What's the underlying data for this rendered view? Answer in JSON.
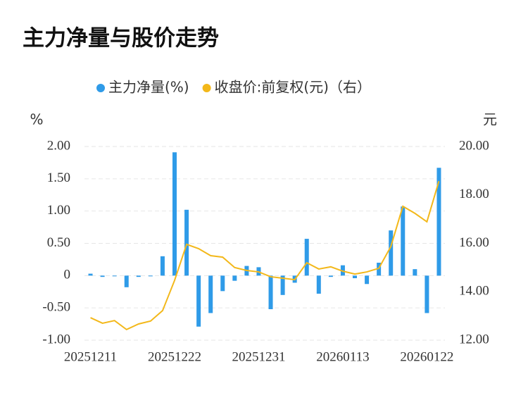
{
  "chart_data": {
    "type": "bar-line",
    "title": "主力净量与股价走势",
    "y_label": "%",
    "y2_label": "元",
    "categories": [
      "20251211",
      null,
      null,
      null,
      null,
      null,
      null,
      "20251222",
      null,
      null,
      null,
      null,
      null,
      null,
      "20251231",
      null,
      null,
      null,
      null,
      null,
      null,
      "20260113",
      null,
      null,
      null,
      null,
      null,
      null,
      "20260122",
      null
    ],
    "series": [
      {
        "name": "主力净量(%)",
        "type": "bar",
        "color": "#2f9be8",
        "values": [
          0.03,
          -0.02,
          -0.01,
          -0.18,
          -0.02,
          -0.01,
          0.3,
          1.91,
          1.02,
          -0.79,
          -0.58,
          -0.24,
          -0.08,
          0.15,
          0.13,
          -0.52,
          -0.3,
          -0.11,
          0.57,
          -0.28,
          -0.02,
          0.16,
          -0.04,
          -0.13,
          0.2,
          0.7,
          1.07,
          0.1,
          -0.58,
          1.67
        ]
      },
      {
        "name": "收盘价:前复权(元)（右）",
        "type": "line",
        "axis": "y2",
        "color": "#f3b81a",
        "values": [
          12.93,
          12.7,
          12.81,
          12.44,
          12.67,
          12.79,
          13.22,
          14.47,
          15.96,
          15.78,
          15.49,
          15.43,
          15.0,
          14.88,
          14.82,
          14.62,
          14.56,
          14.5,
          15.2,
          14.94,
          15.03,
          14.85,
          14.73,
          14.82,
          14.97,
          15.87,
          17.53,
          17.24,
          16.89,
          18.57
        ]
      }
    ],
    "ylim": [
      -1,
      2
    ],
    "yticks": [
      {
        "value": 2,
        "label": "2.00"
      },
      {
        "value": 1.5,
        "label": "1.50"
      },
      {
        "value": 1,
        "label": "1.00"
      },
      {
        "value": 0.5,
        "label": "0.50"
      },
      0,
      {
        "value": -0.5,
        "label": "-0.50"
      },
      {
        "value": -1,
        "label": "-1.00"
      }
    ],
    "y2lim": [
      12,
      20
    ],
    "y2ticks": [
      {
        "value": 20,
        "label": "20.00"
      },
      {
        "value": 18,
        "label": "18.00"
      },
      {
        "value": 16,
        "label": "16.00"
      },
      {
        "value": 14,
        "label": "14.00"
      },
      {
        "value": 12,
        "label": "12.00"
      }
    ],
    "grid": true,
    "legend": "top"
  }
}
